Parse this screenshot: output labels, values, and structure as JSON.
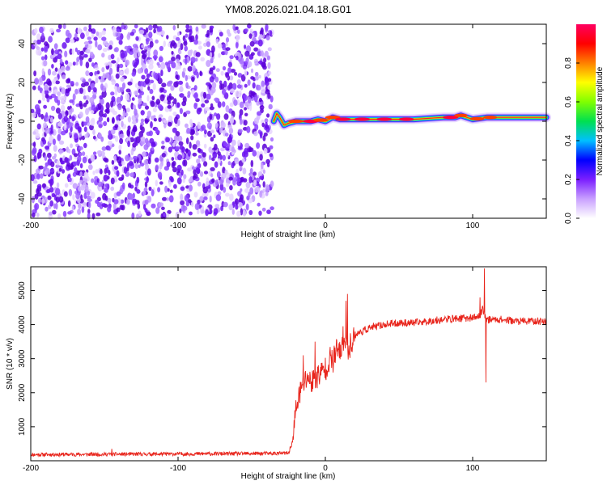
{
  "title": "YM08.2026.021.04.18.G01",
  "chart_data": [
    {
      "type": "heatmap",
      "name": "spectrogram",
      "xlabel": "Height of straight line (km)",
      "ylabel": "Frequency (Hz)",
      "xlim": [
        -200,
        150
      ],
      "ylim": [
        -50,
        50
      ],
      "xticks": [
        -200,
        -100,
        0,
        100
      ],
      "yticks": [
        -40,
        -20,
        0,
        20,
        40
      ],
      "colorbar": {
        "label": "Normalized spectral amplitude",
        "range": [
          0,
          1
        ],
        "ticks": [
          0,
          0.2,
          0.4,
          0.6,
          0.8
        ],
        "tick_labels": [
          "0.0",
          "0.2",
          "0.4",
          "0.6",
          "0.8"
        ],
        "colormap": [
          "#ffffff",
          "#c9a0ff",
          "#7b1fff",
          "#0000ff",
          "#00c0ff",
          "#00e050",
          "#80ff00",
          "#ffff00",
          "#ff8000",
          "#ff0000",
          "#ff0060"
        ]
      },
      "noise_region_x": [
        -200,
        -35
      ],
      "signal_track": {
        "x": [
          -35,
          -33,
          -31,
          -28,
          -25,
          -20,
          -10,
          -5,
          0,
          5,
          10,
          20,
          40,
          60,
          80,
          88,
          92,
          100,
          110,
          130,
          150
        ],
        "freq_center": [
          0,
          4,
          2,
          -2,
          -1,
          0,
          0,
          1,
          0,
          2,
          1,
          1,
          1,
          1,
          2,
          2,
          3,
          1,
          2,
          2,
          2
        ],
        "peak_amplitude": [
          0.2,
          0.25,
          0.45,
          0.7,
          0.85,
          0.9,
          0.95,
          0.9,
          0.85,
          0.9,
          0.95,
          0.98,
          0.95,
          0.9,
          0.92,
          0.98,
          0.7,
          0.85,
          0.75,
          0.7,
          0.7
        ]
      }
    },
    {
      "type": "line",
      "name": "snr",
      "xlabel": "Height of straight line (km)",
      "ylabel": "SNR (10 * v/v)",
      "xlim": [
        -200,
        150
      ],
      "ylim": [
        0,
        5700
      ],
      "xticks": [
        -200,
        -100,
        0,
        100
      ],
      "yticks": [
        1000,
        2000,
        3000,
        4000,
        5000
      ],
      "color": "#e8241b",
      "series": [
        {
          "name": "SNR",
          "x": [
            -200,
            -150,
            -100,
            -50,
            -25,
            -22,
            -20,
            -18,
            -15,
            -12,
            -10,
            -5,
            0,
            3,
            5,
            8,
            10,
            12,
            14,
            15,
            16,
            18,
            20,
            25,
            30,
            40,
            50,
            60,
            70,
            80,
            90,
            100,
            105,
            107,
            108,
            109,
            110,
            115,
            120,
            130,
            140,
            150
          ],
          "y": [
            180,
            190,
            200,
            210,
            220,
            600,
            1500,
            1900,
            2200,
            2500,
            2300,
            2500,
            2700,
            3000,
            2900,
            3300,
            3100,
            3600,
            3400,
            3200,
            3300,
            3500,
            3700,
            3800,
            3900,
            4000,
            4050,
            4050,
            4100,
            4150,
            4180,
            4200,
            4250,
            4500,
            4300,
            4200,
            4150,
            4150,
            4150,
            4100,
            4100,
            4100
          ]
        }
      ],
      "annotations_spikes": {
        "x": [
          -145,
          -15,
          -7,
          14,
          15,
          105,
          108,
          109
        ],
        "y": [
          350,
          3100,
          3500,
          4700,
          4900,
          4800,
          5650,
          2300
        ]
      }
    }
  ]
}
